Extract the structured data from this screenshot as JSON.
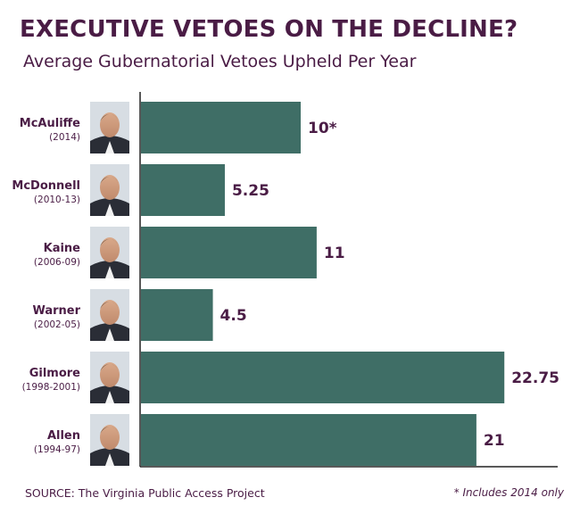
{
  "header": {
    "title": "EXECUTIVE VETOES ON THE DECLINE?",
    "subtitle": "Average Gubernatorial Vetoes Upheld Per Year"
  },
  "footer": {
    "source": "SOURCE: The Virginia Public Access Project",
    "footnote": "* Includes 2014 only"
  },
  "colors": {
    "bar": "#3f6e66",
    "text": "#4a1c45",
    "axis": "#222222"
  },
  "chart_data": {
    "type": "bar",
    "orientation": "horizontal",
    "title": "EXECUTIVE VETOES ON THE DECLINE?",
    "subtitle": "Average Gubernatorial Vetoes Upheld Per Year",
    "categories": [
      "McAuliffe",
      "McDonnell",
      "Kaine",
      "Warner",
      "Gilmore",
      "Allen"
    ],
    "category_years": [
      "(2014)",
      "(2010-13)",
      "(2006-09)",
      "(2002-05)",
      "(1998-2001)",
      "(1994-97)"
    ],
    "values": [
      10,
      5.25,
      11,
      4.5,
      22.75,
      21
    ],
    "value_labels": [
      "10*",
      "5.25",
      "11",
      "4.5",
      "22.75",
      "21"
    ],
    "xlim": [
      0,
      25
    ],
    "xlabel": "",
    "ylabel": "",
    "grid": false,
    "legend": "none"
  }
}
